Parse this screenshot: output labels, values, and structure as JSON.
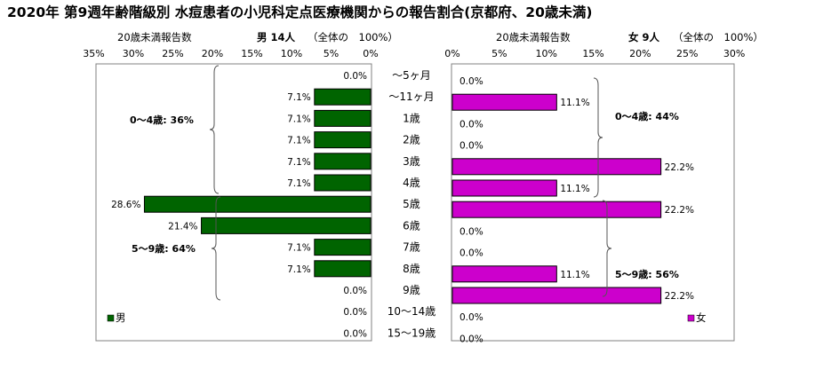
{
  "title": "2020年 第9週年齢階級別 水痘患者の小児科定点医療機関からの報告割合(京都府、20歳未満)",
  "age_labels": [
    "～5ヶ月",
    "～11ヶ月",
    "1歳",
    "2歳",
    "3歳",
    "4歳",
    "5歳",
    "6歳",
    "7歳",
    "8歳",
    "9歳",
    "10～14歳",
    "15～19歳"
  ],
  "male_panel": {
    "axis_title": "20歳未満報告数",
    "header": "男 14人",
    "total_note": "（全体の　100%）",
    "tick_labels": [
      "35%",
      "30%",
      "25%",
      "20%",
      "15%",
      "10%",
      "5%",
      "0%"
    ],
    "legend": "男",
    "color": "#006400",
    "groups": [
      {
        "label": "0～4歳: 36%"
      },
      {
        "label": "5～9歳: 64%"
      }
    ]
  },
  "female_panel": {
    "axis_title": "20歳未満報告数",
    "header": "女 9人",
    "total_note": "（全体の　100%）",
    "tick_labels": [
      "0%",
      "5%",
      "10%",
      "15%",
      "20%",
      "25%",
      "30%"
    ],
    "legend": "女",
    "color": "#cc00cc",
    "groups": [
      {
        "label": "0～4歳: 44%"
      },
      {
        "label": "5～9歳: 56%"
      }
    ]
  },
  "chart_data": [
    {
      "type": "bar",
      "orientation": "horizontal",
      "series": [
        {
          "name": "男",
          "values": [
            0.0,
            7.1,
            7.1,
            7.1,
            7.1,
            7.1,
            28.6,
            21.4,
            7.1,
            7.1,
            0.0,
            0.0,
            0.0
          ]
        }
      ],
      "value_labels": [
        "0.0%",
        "7.1%",
        "7.1%",
        "7.1%",
        "7.1%",
        "7.1%",
        "28.6%",
        "21.4%",
        "7.1%",
        "7.1%",
        "0.0%",
        "0.0%",
        "0.0%"
      ],
      "xlim": [
        35,
        0
      ],
      "x_direction": "reversed",
      "legend_position": "bottom-left",
      "grid": false
    },
    {
      "type": "bar",
      "orientation": "horizontal",
      "series": [
        {
          "name": "女",
          "values": [
            0.0,
            11.1,
            0.0,
            0.0,
            22.2,
            11.1,
            22.2,
            0.0,
            0.0,
            11.1,
            22.2,
            0.0,
            0.0
          ]
        }
      ],
      "value_labels": [
        "0.0%",
        "11.1%",
        "0.0%",
        "0.0%",
        "22.2%",
        "11.1%",
        "22.2%",
        "0.0%",
        "0.0%",
        "11.1%",
        "22.2%",
        "0.0%",
        "0.0%"
      ],
      "xlim": [
        0,
        30
      ],
      "legend_position": "bottom-right",
      "grid": false
    }
  ]
}
